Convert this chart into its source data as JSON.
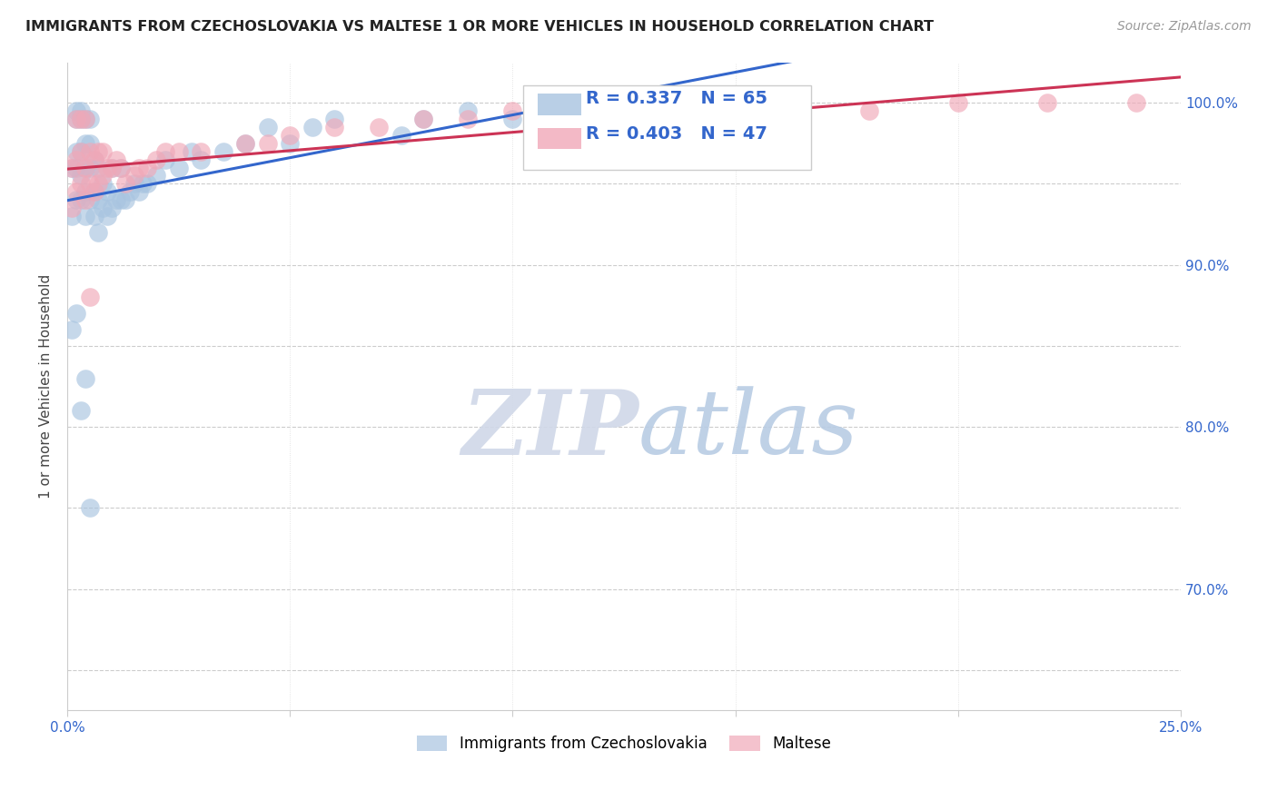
{
  "title": "IMMIGRANTS FROM CZECHOSLOVAKIA VS MALTESE 1 OR MORE VEHICLES IN HOUSEHOLD CORRELATION CHART",
  "source": "Source: ZipAtlas.com",
  "ylabel": "1 or more Vehicles in Household",
  "xlim": [
    0.0,
    0.25
  ],
  "ylim": [
    0.625,
    1.025
  ],
  "xtick_positions": [
    0.0,
    0.05,
    0.1,
    0.15,
    0.2,
    0.25
  ],
  "xtick_labels": [
    "0.0%",
    "",
    "",
    "",
    "",
    "25.0%"
  ],
  "ytick_positions": [
    0.65,
    0.7,
    0.75,
    0.8,
    0.85,
    0.9,
    0.95,
    1.0
  ],
  "ytick_labels": [
    "",
    "70.0%",
    "",
    "80.0%",
    "",
    "90.0%",
    "",
    "100.0%"
  ],
  "legend1_r": "0.337",
  "legend1_n": "65",
  "legend2_r": "0.403",
  "legend2_n": "47",
  "blue_color": "#a8c4e0",
  "pink_color": "#f0a8b8",
  "blue_line_color": "#3366cc",
  "pink_line_color": "#cc3355",
  "watermark_zip": "ZIP",
  "watermark_atlas": "atlas",
  "blue_scatter_x": [
    0.001,
    0.001,
    0.002,
    0.002,
    0.002,
    0.002,
    0.002,
    0.003,
    0.003,
    0.003,
    0.003,
    0.003,
    0.004,
    0.004,
    0.004,
    0.004,
    0.004,
    0.005,
    0.005,
    0.005,
    0.005,
    0.006,
    0.006,
    0.006,
    0.007,
    0.007,
    0.007,
    0.008,
    0.008,
    0.009,
    0.009,
    0.01,
    0.01,
    0.011,
    0.012,
    0.012,
    0.013,
    0.014,
    0.015,
    0.016,
    0.017,
    0.018,
    0.02,
    0.022,
    0.025,
    0.028,
    0.03,
    0.035,
    0.04,
    0.045,
    0.05,
    0.055,
    0.06,
    0.075,
    0.08,
    0.09,
    0.1,
    0.11,
    0.13,
    0.15,
    0.001,
    0.002,
    0.003,
    0.004,
    0.005
  ],
  "blue_scatter_y": [
    0.93,
    0.96,
    0.94,
    0.96,
    0.97,
    0.99,
    0.995,
    0.94,
    0.955,
    0.97,
    0.99,
    0.995,
    0.93,
    0.945,
    0.96,
    0.975,
    0.99,
    0.94,
    0.96,
    0.975,
    0.99,
    0.93,
    0.945,
    0.965,
    0.92,
    0.94,
    0.96,
    0.935,
    0.95,
    0.93,
    0.945,
    0.935,
    0.96,
    0.94,
    0.94,
    0.96,
    0.94,
    0.945,
    0.95,
    0.945,
    0.95,
    0.95,
    0.955,
    0.965,
    0.96,
    0.97,
    0.965,
    0.97,
    0.975,
    0.985,
    0.975,
    0.985,
    0.99,
    0.98,
    0.99,
    0.995,
    0.99,
    0.995,
    0.99,
    0.995,
    0.86,
    0.87,
    0.81,
    0.83,
    0.75
  ],
  "pink_scatter_x": [
    0.001,
    0.001,
    0.002,
    0.002,
    0.002,
    0.003,
    0.003,
    0.003,
    0.004,
    0.004,
    0.004,
    0.005,
    0.005,
    0.006,
    0.006,
    0.007,
    0.007,
    0.008,
    0.008,
    0.009,
    0.01,
    0.011,
    0.012,
    0.013,
    0.015,
    0.016,
    0.018,
    0.02,
    0.022,
    0.025,
    0.03,
    0.04,
    0.045,
    0.05,
    0.06,
    0.07,
    0.08,
    0.09,
    0.1,
    0.12,
    0.14,
    0.16,
    0.18,
    0.2,
    0.22,
    0.24,
    0.005
  ],
  "pink_scatter_y": [
    0.935,
    0.96,
    0.945,
    0.965,
    0.99,
    0.95,
    0.97,
    0.99,
    0.94,
    0.96,
    0.99,
    0.95,
    0.97,
    0.945,
    0.965,
    0.95,
    0.97,
    0.955,
    0.97,
    0.96,
    0.96,
    0.965,
    0.96,
    0.95,
    0.955,
    0.96,
    0.96,
    0.965,
    0.97,
    0.97,
    0.97,
    0.975,
    0.975,
    0.98,
    0.985,
    0.985,
    0.99,
    0.99,
    0.995,
    0.995,
    0.995,
    0.995,
    0.995,
    1.0,
    1.0,
    1.0,
    0.88
  ]
}
